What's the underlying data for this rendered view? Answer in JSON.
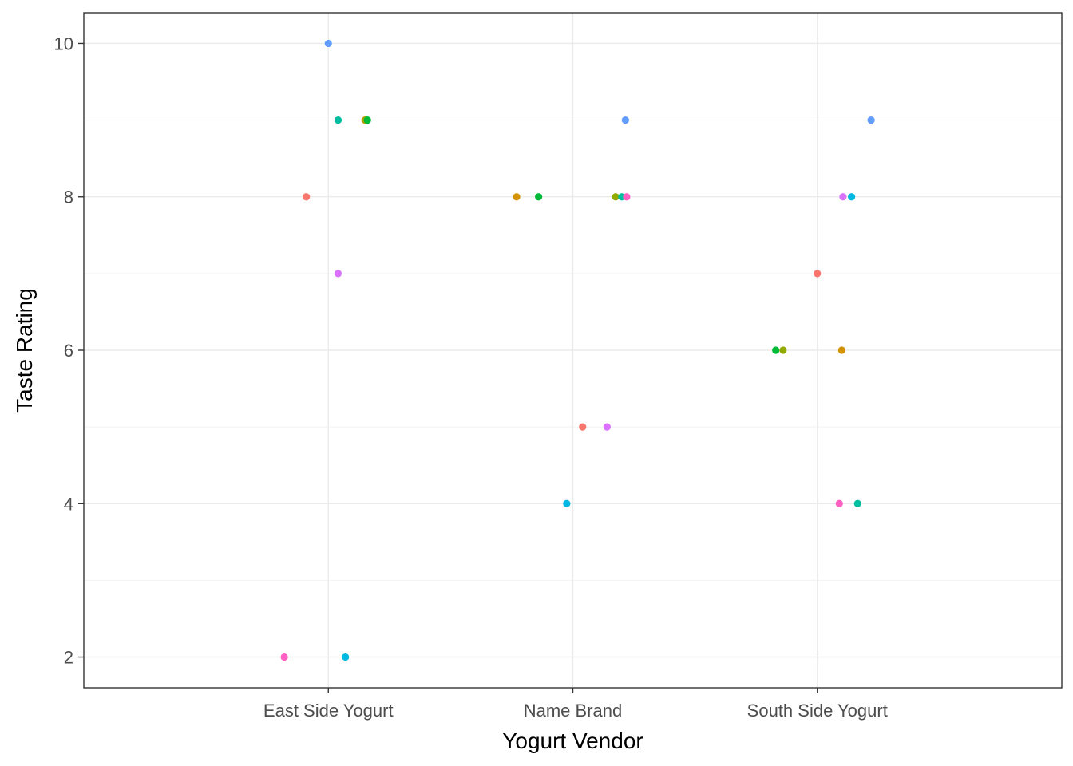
{
  "chart_data": {
    "type": "scatter",
    "title": "",
    "xlabel": "Yogurt Vendor",
    "ylabel": "Taste Rating",
    "categories": [
      "East Side Yogurt",
      "Name Brand",
      "South Side Yogurt"
    ],
    "ylim": [
      1.6,
      10.4
    ],
    "yticks": [
      2,
      4,
      6,
      8,
      10
    ],
    "grid": true,
    "legend": "none",
    "points": [
      {
        "x": "East Side Yogurt",
        "jitter": -0.18,
        "y": 2,
        "color": "#FF61C3"
      },
      {
        "x": "East Side Yogurt",
        "jitter": -0.09,
        "y": 8,
        "color": "#F8766D"
      },
      {
        "x": "East Side Yogurt",
        "jitter": 0.0,
        "y": 10,
        "color": "#619CFF"
      },
      {
        "x": "East Side Yogurt",
        "jitter": 0.04,
        "y": 7,
        "color": "#DB72FB"
      },
      {
        "x": "East Side Yogurt",
        "jitter": 0.04,
        "y": 9,
        "color": "#00BFA0"
      },
      {
        "x": "East Side Yogurt",
        "jitter": 0.07,
        "y": 2,
        "color": "#00B9E3"
      },
      {
        "x": "East Side Yogurt",
        "jitter": 0.15,
        "y": 9,
        "color": "#D39200"
      },
      {
        "x": "East Side Yogurt",
        "jitter": 0.155,
        "y": 9,
        "color": "#93AA00"
      },
      {
        "x": "East Side Yogurt",
        "jitter": 0.16,
        "y": 9,
        "color": "#00BA38"
      },
      {
        "x": "Name Brand",
        "jitter": -0.23,
        "y": 8,
        "color": "#D39200"
      },
      {
        "x": "Name Brand",
        "jitter": -0.14,
        "y": 8,
        "color": "#00BA38"
      },
      {
        "x": "Name Brand",
        "jitter": -0.025,
        "y": 4,
        "color": "#00B9E3"
      },
      {
        "x": "Name Brand",
        "jitter": 0.04,
        "y": 5,
        "color": "#F8766D"
      },
      {
        "x": "Name Brand",
        "jitter": 0.14,
        "y": 5,
        "color": "#DB72FB"
      },
      {
        "x": "Name Brand",
        "jitter": 0.175,
        "y": 8,
        "color": "#93AA00"
      },
      {
        "x": "Name Brand",
        "jitter": 0.2,
        "y": 8,
        "color": "#00BFA0"
      },
      {
        "x": "Name Brand",
        "jitter": 0.215,
        "y": 9,
        "color": "#619CFF"
      },
      {
        "x": "Name Brand",
        "jitter": 0.22,
        "y": 8,
        "color": "#FF61C3"
      },
      {
        "x": "South Side Yogurt",
        "jitter": -0.17,
        "y": 6,
        "color": "#00BA38"
      },
      {
        "x": "South Side Yogurt",
        "jitter": -0.14,
        "y": 6,
        "color": "#93AA00"
      },
      {
        "x": "South Side Yogurt",
        "jitter": 0.0,
        "y": 7,
        "color": "#F8766D"
      },
      {
        "x": "South Side Yogurt",
        "jitter": 0.09,
        "y": 4,
        "color": "#FF61C3"
      },
      {
        "x": "South Side Yogurt",
        "jitter": 0.1,
        "y": 6,
        "color": "#D39200"
      },
      {
        "x": "South Side Yogurt",
        "jitter": 0.105,
        "y": 8,
        "color": "#DB72FB"
      },
      {
        "x": "South Side Yogurt",
        "jitter": 0.14,
        "y": 8,
        "color": "#00B9E3"
      },
      {
        "x": "South Side Yogurt",
        "jitter": 0.165,
        "y": 4,
        "color": "#00BFA0"
      },
      {
        "x": "South Side Yogurt",
        "jitter": 0.22,
        "y": 9,
        "color": "#619CFF"
      }
    ]
  }
}
